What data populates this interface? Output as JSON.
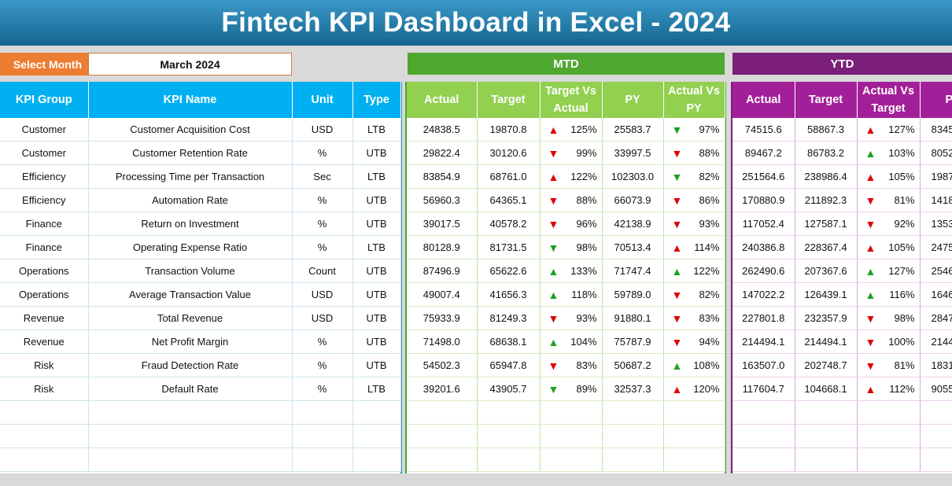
{
  "title": "Fintech KPI Dashboard in Excel - 2024",
  "select_month": {
    "label": "Select Month",
    "value": "March 2024"
  },
  "sections": {
    "mtd": "MTD",
    "ytd": "YTD"
  },
  "colors": {
    "blue": "#00b0f0",
    "green": "#92d050",
    "green_dark": "#4ea72e",
    "purple": "#a31f99",
    "purple_dark": "#7b1f7a",
    "orange": "#ed7d31",
    "up_arrow": "#1ea11e",
    "down_arrow": "#e00000"
  },
  "left_headers": [
    "KPI Group",
    "KPI Name",
    "Unit",
    "Type"
  ],
  "mtd_headers": [
    "Actual",
    "Target",
    "Target Vs Actual",
    "PY",
    "Actual Vs PY"
  ],
  "ytd_headers": [
    "Actual",
    "Target",
    "Actual Vs Target",
    "PY"
  ],
  "rows": [
    {
      "group": "Customer",
      "name": "Customer Acquisition Cost",
      "unit": "USD",
      "type": "LTB",
      "mtd": {
        "actual": "24838.5",
        "target": "19870.8",
        "tva_dir": "up-red",
        "tva": "125%",
        "py": "25583.7",
        "avp_dir": "down-green",
        "avp": "97%"
      },
      "ytd": {
        "actual": "74515.6",
        "target": "58867.3",
        "avt_dir": "up-red",
        "avt": "127%",
        "py": "8345"
      }
    },
    {
      "group": "Customer",
      "name": "Customer Retention Rate",
      "unit": "%",
      "type": "UTB",
      "mtd": {
        "actual": "29822.4",
        "target": "30120.6",
        "tva_dir": "down-red",
        "tva": "99%",
        "py": "33997.5",
        "avp_dir": "down-red",
        "avp": "88%"
      },
      "ytd": {
        "actual": "89467.2",
        "target": "86783.2",
        "avt_dir": "up-green",
        "avt": "103%",
        "py": "8052"
      }
    },
    {
      "group": "Efficiency",
      "name": "Processing Time per Transaction",
      "unit": "Sec",
      "type": "LTB",
      "mtd": {
        "actual": "83854.9",
        "target": "68761.0",
        "tva_dir": "up-red",
        "tva": "122%",
        "py": "102303.0",
        "avp_dir": "down-green",
        "avp": "82%"
      },
      "ytd": {
        "actual": "251564.6",
        "target": "238986.4",
        "avt_dir": "up-red",
        "avt": "105%",
        "py": "1987"
      }
    },
    {
      "group": "Efficiency",
      "name": "Automation Rate",
      "unit": "%",
      "type": "UTB",
      "mtd": {
        "actual": "56960.3",
        "target": "64365.1",
        "tva_dir": "down-red",
        "tva": "88%",
        "py": "66073.9",
        "avp_dir": "down-red",
        "avp": "86%"
      },
      "ytd": {
        "actual": "170880.9",
        "target": "211892.3",
        "avt_dir": "down-red",
        "avt": "81%",
        "py": "1418"
      }
    },
    {
      "group": "Finance",
      "name": "Return on Investment",
      "unit": "%",
      "type": "UTB",
      "mtd": {
        "actual": "39017.5",
        "target": "40578.2",
        "tva_dir": "down-red",
        "tva": "96%",
        "py": "42138.9",
        "avp_dir": "down-red",
        "avp": "93%"
      },
      "ytd": {
        "actual": "117052.4",
        "target": "127587.1",
        "avt_dir": "down-red",
        "avt": "92%",
        "py": "1353"
      }
    },
    {
      "group": "Finance",
      "name": "Operating Expense Ratio",
      "unit": "%",
      "type": "LTB",
      "mtd": {
        "actual": "80128.9",
        "target": "81731.5",
        "tva_dir": "down-green",
        "tva": "98%",
        "py": "70513.4",
        "avp_dir": "up-red",
        "avp": "114%"
      },
      "ytd": {
        "actual": "240386.8",
        "target": "228367.4",
        "avt_dir": "up-red",
        "avt": "105%",
        "py": "2475"
      }
    },
    {
      "group": "Operations",
      "name": "Transaction Volume",
      "unit": "Count",
      "type": "UTB",
      "mtd": {
        "actual": "87496.9",
        "target": "65622.6",
        "tva_dir": "up-green",
        "tva": "133%",
        "py": "71747.4",
        "avp_dir": "up-green",
        "avp": "122%"
      },
      "ytd": {
        "actual": "262490.6",
        "target": "207367.6",
        "avt_dir": "up-green",
        "avt": "127%",
        "py": "2546"
      }
    },
    {
      "group": "Operations",
      "name": "Average Transaction Value",
      "unit": "USD",
      "type": "UTB",
      "mtd": {
        "actual": "49007.4",
        "target": "41656.3",
        "tva_dir": "up-green",
        "tva": "118%",
        "py": "59789.0",
        "avp_dir": "down-red",
        "avp": "82%"
      },
      "ytd": {
        "actual": "147022.2",
        "target": "126439.1",
        "avt_dir": "up-green",
        "avt": "116%",
        "py": "1646"
      }
    },
    {
      "group": "Revenue",
      "name": "Total Revenue",
      "unit": "USD",
      "type": "UTB",
      "mtd": {
        "actual": "75933.9",
        "target": "81249.3",
        "tva_dir": "down-red",
        "tva": "93%",
        "py": "91880.1",
        "avp_dir": "down-red",
        "avp": "83%"
      },
      "ytd": {
        "actual": "227801.8",
        "target": "232357.9",
        "avt_dir": "down-red",
        "avt": "98%",
        "py": "2847"
      }
    },
    {
      "group": "Revenue",
      "name": "Net Profit Margin",
      "unit": "%",
      "type": "UTB",
      "mtd": {
        "actual": "71498.0",
        "target": "68638.1",
        "tva_dir": "up-green",
        "tva": "104%",
        "py": "75787.9",
        "avp_dir": "down-red",
        "avp": "94%"
      },
      "ytd": {
        "actual": "214494.1",
        "target": "214494.1",
        "avt_dir": "down-red",
        "avt": "100%",
        "py": "2144"
      }
    },
    {
      "group": "Risk",
      "name": "Fraud Detection Rate",
      "unit": "%",
      "type": "UTB",
      "mtd": {
        "actual": "54502.3",
        "target": "65947.8",
        "tva_dir": "down-red",
        "tva": "83%",
        "py": "50687.2",
        "avp_dir": "up-green",
        "avp": "108%"
      },
      "ytd": {
        "actual": "163507.0",
        "target": "202748.7",
        "avt_dir": "down-red",
        "avt": "81%",
        "py": "1831"
      }
    },
    {
      "group": "Risk",
      "name": "Default Rate",
      "unit": "%",
      "type": "LTB",
      "mtd": {
        "actual": "39201.6",
        "target": "43905.7",
        "tva_dir": "down-green",
        "tva": "89%",
        "py": "32537.3",
        "avp_dir": "up-red",
        "avp": "120%"
      },
      "ytd": {
        "actual": "117604.7",
        "target": "104668.1",
        "avt_dir": "up-red",
        "avt": "112%",
        "py": "9055"
      }
    }
  ],
  "empty_rows": 3
}
